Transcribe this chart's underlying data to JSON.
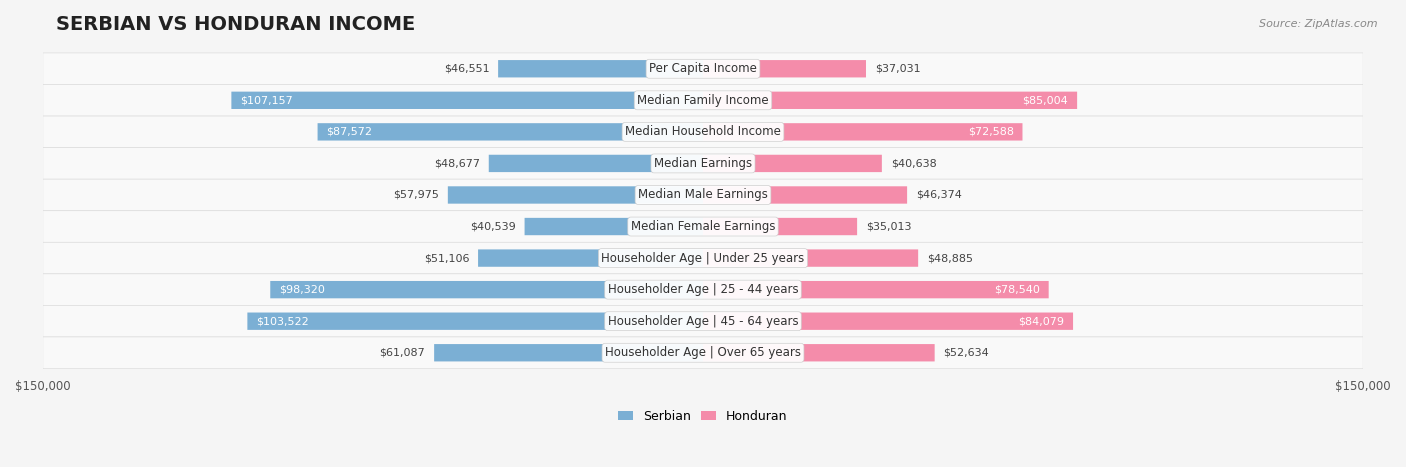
{
  "title": "SERBIAN VS HONDURAN INCOME",
  "source": "Source: ZipAtlas.com",
  "categories": [
    "Per Capita Income",
    "Median Family Income",
    "Median Household Income",
    "Median Earnings",
    "Median Male Earnings",
    "Median Female Earnings",
    "Householder Age | Under 25 years",
    "Householder Age | 25 - 44 years",
    "Householder Age | 45 - 64 years",
    "Householder Age | Over 65 years"
  ],
  "serbian_values": [
    46551,
    107157,
    87572,
    48677,
    57975,
    40539,
    51106,
    98320,
    103522,
    61087
  ],
  "honduran_values": [
    37031,
    85004,
    72588,
    40638,
    46374,
    35013,
    48885,
    78540,
    84079,
    52634
  ],
  "serbian_labels": [
    "$46,551",
    "$107,157",
    "$87,572",
    "$48,677",
    "$57,975",
    "$40,539",
    "$51,106",
    "$98,320",
    "$103,522",
    "$61,087"
  ],
  "honduran_labels": [
    "$37,031",
    "$85,004",
    "$72,588",
    "$40,638",
    "$46,374",
    "$35,013",
    "$48,885",
    "$78,540",
    "$84,079",
    "$52,634"
  ],
  "serbian_color": "#7bafd4",
  "honduran_color": "#f48caa",
  "serbian_color_dark": "#5b8fbf",
  "honduran_color_dark": "#e8698a",
  "max_value": 150000,
  "background_color": "#f5f5f5",
  "row_bg_color": "#ffffff",
  "row_border_color": "#dddddd",
  "title_fontsize": 14,
  "label_fontsize": 9,
  "axis_label_fontsize": 9
}
